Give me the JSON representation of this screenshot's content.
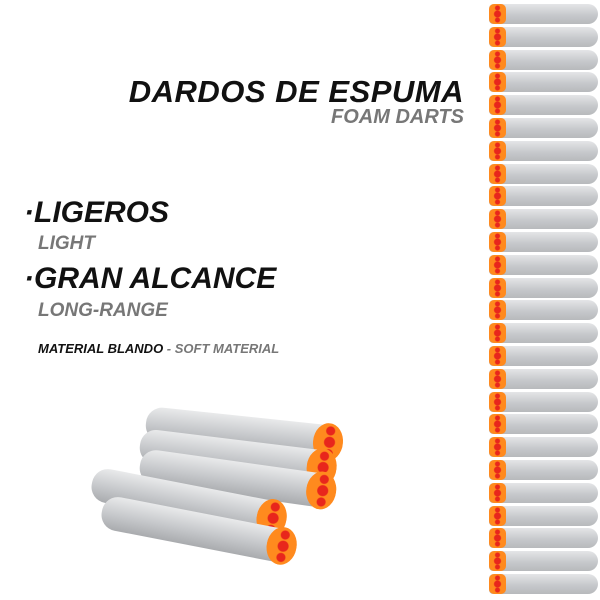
{
  "header": {
    "title": "DARDOS DE ESPUMA",
    "subtitle": "FOAM DARTS"
  },
  "features": [
    {
      "label": "·LIGEROS",
      "translation": "LIGHT"
    },
    {
      "label": "·GRAN ALCANCE",
      "translation": "LONG-RANGE"
    }
  ],
  "material": {
    "label": "MATERIAL BLANDO",
    "separator": " - ",
    "translation": "SOFT MATERIAL"
  },
  "colors": {
    "foam": "#c9cbce",
    "tip": "#ff8a1e",
    "tip_accent": "#e8261c"
  }
}
